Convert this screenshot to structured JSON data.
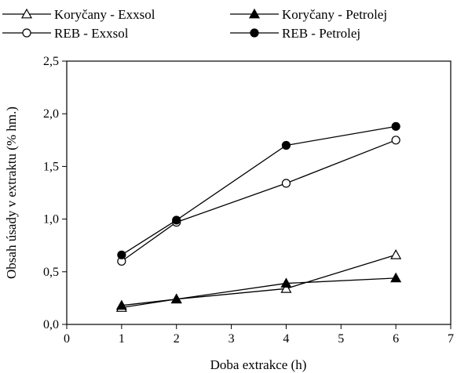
{
  "chart_data": {
    "type": "line",
    "title": "",
    "xlabel": "Doba extrakce (h)",
    "ylabel": "Obsah úsady v extraktu (% hm.)",
    "xlim": [
      0,
      7
    ],
    "ylim": [
      0,
      2.5
    ],
    "xticks": [
      0,
      1,
      2,
      3,
      4,
      5,
      6,
      7
    ],
    "yticks": [
      0.0,
      0.5,
      1.0,
      1.5,
      2.0,
      2.5
    ],
    "xtick_labels": [
      "0",
      "1",
      "2",
      "3",
      "4",
      "5",
      "6",
      "7"
    ],
    "ytick_labels": [
      "0,0",
      "0,5",
      "1,0",
      "1,5",
      "2,0",
      "2,5"
    ],
    "grid": false,
    "legend_position": "top",
    "series": [
      {
        "name": "Koryčany - Exxsol",
        "marker": "triangle",
        "filled": false,
        "x": [
          1,
          2,
          4,
          6
        ],
        "y": [
          0.16,
          0.24,
          0.34,
          0.66
        ]
      },
      {
        "name": "Koryčany - Petrolej",
        "marker": "triangle",
        "filled": true,
        "x": [
          1,
          2,
          4,
          6
        ],
        "y": [
          0.18,
          0.24,
          0.39,
          0.44
        ]
      },
      {
        "name": "REB - Exxsol",
        "marker": "circle",
        "filled": false,
        "x": [
          1,
          2,
          4,
          6
        ],
        "y": [
          0.6,
          0.97,
          1.34,
          1.75
        ]
      },
      {
        "name": "REB - Petrolej",
        "marker": "circle",
        "filled": true,
        "x": [
          1,
          2,
          4,
          6
        ],
        "y": [
          0.66,
          0.99,
          1.7,
          1.88
        ]
      }
    ]
  }
}
